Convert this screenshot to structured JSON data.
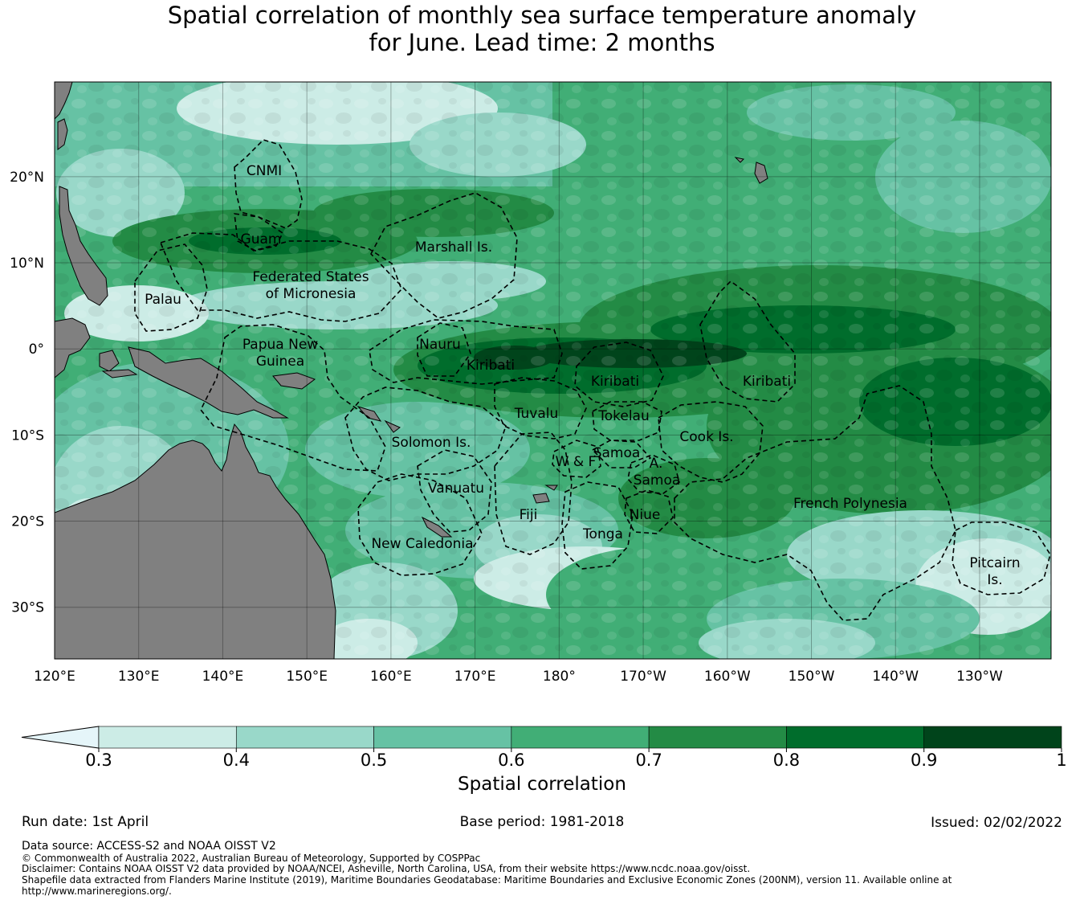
{
  "title": {
    "line1": "Spatial correlation of monthly sea surface temperature anomaly",
    "line2": "for June. Lead time: 2 months"
  },
  "map": {
    "lon_range": [
      120,
      238.5
    ],
    "lat_range": [
      -36,
      31
    ],
    "lon_ticks": [
      "120°E",
      "130°E",
      "140°E",
      "150°E",
      "160°E",
      "170°E",
      "180°",
      "170°W",
      "160°W",
      "150°W",
      "140°W",
      "130°W"
    ],
    "lat_ticks": [
      "20°N",
      "10°N",
      "0°",
      "10°S",
      "20°S",
      "30°S"
    ],
    "gridlines": true,
    "land_color": "#808080",
    "region_labels": [
      {
        "text": "CNMI"
      },
      {
        "text": "Guam"
      },
      {
        "text": "Marshall Is."
      },
      {
        "text": "Federated States"
      },
      {
        "text": "of Micronesia"
      },
      {
        "text": "Palau"
      },
      {
        "text": "Papua New"
      },
      {
        "text": "Guinea"
      },
      {
        "text": "Nauru"
      },
      {
        "text": "Kiribati"
      },
      {
        "text": "Kiribati"
      },
      {
        "text": "Kiribati"
      },
      {
        "text": "Tuvalu"
      },
      {
        "text": "Tokelau"
      },
      {
        "text": "Solomon Is."
      },
      {
        "text": "Cook Is."
      },
      {
        "text": "Samoa"
      },
      {
        "text": "W & F"
      },
      {
        "text": "A."
      },
      {
        "text": "Samoa"
      },
      {
        "text": "Vanuatu"
      },
      {
        "text": "Fiji"
      },
      {
        "text": "Niue"
      },
      {
        "text": "Tonga"
      },
      {
        "text": "French Polynesia"
      },
      {
        "text": "New Caledonia"
      },
      {
        "text": "Pitcairn"
      },
      {
        "text": "Is."
      }
    ]
  },
  "colorbar": {
    "label": "Spatial correlation",
    "ticks": [
      "0.3",
      "0.4",
      "0.5",
      "0.6",
      "0.7",
      "0.8",
      "0.9",
      "1"
    ],
    "colors": [
      "#e5f5f9",
      "#ccece6",
      "#99d8c9",
      "#66c2a4",
      "#41ae76",
      "#238b45",
      "#006d2c",
      "#00441b"
    ],
    "extend": "min"
  },
  "footer": {
    "run_date": "Run date: 1st April",
    "base_period": "Base period: 1981-2018",
    "issued": "Issued: 02/02/2022",
    "data_source": "Data source: ACCESS-S2 and NOAA OISST V2",
    "copyright": "© Commonwealth of Australia 2022, Australian Bureau of Meteorology, Supported by COSPPac",
    "disclaimer": "Disclaimer: Contains NOAA OISST V2 data provided by NOAA/NCEI, Asheville, North Carolina, USA, from their website https://www.ncdc.noaa.gov/oisst.",
    "shapefile": "Shapefile data extracted from Flanders Marine Institute (2019), Maritime Boundaries Geodatabase: Maritime Boundaries and Exclusive Economic Zones (200NM), version 11. Available online at",
    "shapefile_url": "http://www.marineregions.org/."
  }
}
